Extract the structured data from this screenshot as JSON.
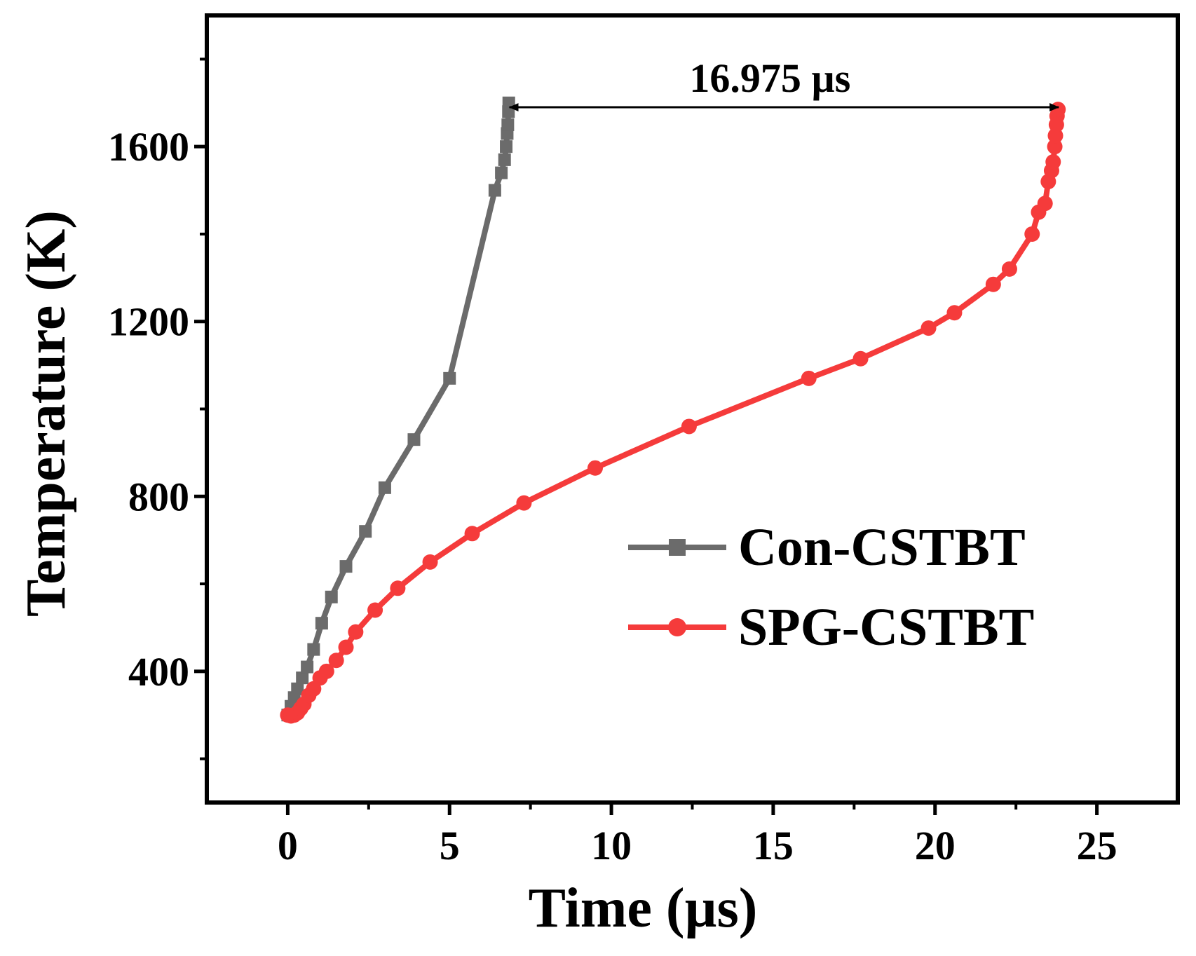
{
  "chart_data": {
    "type": "line",
    "title": "",
    "xlabel": "Time (µs)",
    "ylabel": "Temperature (K)",
    "xlim": [
      -2.5,
      27.5
    ],
    "ylim": [
      100,
      1900
    ],
    "x_ticks": [
      0,
      5,
      10,
      15,
      20,
      25
    ],
    "x_tick_labels": [
      "0",
      "5",
      "10",
      "15",
      "20",
      "25"
    ],
    "y_ticks": [
      400,
      800,
      1200,
      1600
    ],
    "y_tick_labels": [
      "400",
      "800",
      "1200",
      "1600"
    ],
    "x_minor_ticks": [
      2.5,
      7.5,
      12.5,
      17.5,
      22.5
    ],
    "y_minor_ticks": [
      200,
      600,
      1000,
      1400,
      1800
    ],
    "grid": false,
    "legend_position": "right-center",
    "series": [
      {
        "name": "Con-CSTBT",
        "color": "#6b6b6b",
        "marker": "square",
        "x": [
          0.0,
          0.1,
          0.2,
          0.3,
          0.45,
          0.6,
          0.8,
          1.05,
          1.35,
          1.8,
          2.4,
          3.0,
          3.9,
          5.0,
          6.4,
          6.6,
          6.7,
          6.75,
          6.78,
          6.8,
          6.82,
          6.83
        ],
        "y": [
          300,
          320,
          340,
          360,
          385,
          410,
          450,
          510,
          570,
          640,
          720,
          820,
          930,
          1070,
          1500,
          1540,
          1570,
          1600,
          1630,
          1650,
          1680,
          1700
        ]
      },
      {
        "name": "SPG-CSTBT",
        "color": "#f53b3b",
        "marker": "circle",
        "x": [
          0.0,
          0.1,
          0.2,
          0.3,
          0.4,
          0.5,
          0.65,
          0.8,
          1.0,
          1.2,
          1.5,
          1.8,
          2.1,
          2.7,
          3.4,
          4.4,
          5.7,
          7.3,
          9.5,
          12.4,
          16.1,
          17.7,
          19.8,
          20.6,
          21.8,
          22.3,
          23.0,
          23.2,
          23.4,
          23.5,
          23.6,
          23.65,
          23.7,
          23.72,
          23.75,
          23.77,
          23.8
        ],
        "y": [
          300,
          298,
          300,
          305,
          315,
          325,
          345,
          360,
          385,
          400,
          425,
          455,
          490,
          540,
          590,
          650,
          715,
          785,
          865,
          960,
          1070,
          1115,
          1185,
          1220,
          1285,
          1320,
          1400,
          1450,
          1470,
          1520,
          1545,
          1565,
          1600,
          1625,
          1650,
          1670,
          1685
        ]
      }
    ],
    "annotation": {
      "text": "16.975 µs",
      "x_start": 6.85,
      "x_end": 23.82,
      "y": 1690
    }
  }
}
